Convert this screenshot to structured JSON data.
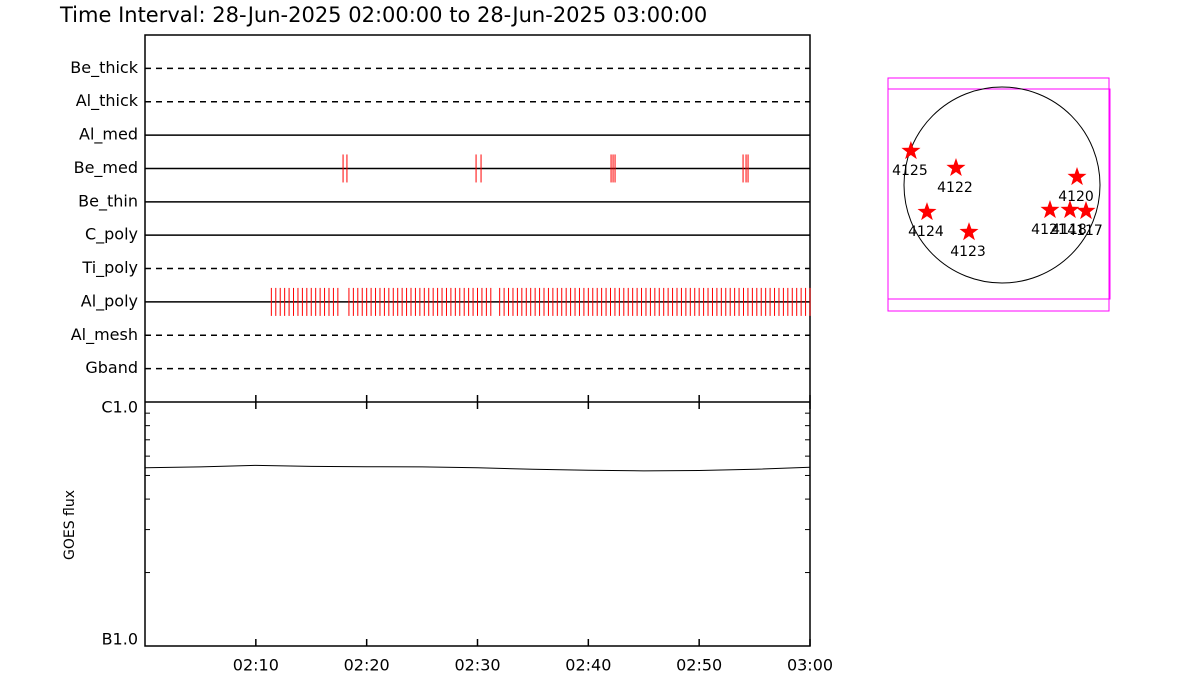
{
  "chart_data": [
    {
      "type": "timeline",
      "title": "Time Interval: 28-Jun-2025 02:00:00 to 28-Jun-2025 03:00:00",
      "xlim": [
        0,
        60
      ],
      "mark_color": "#ff0000",
      "series": [
        {
          "name": "Be_thick",
          "style": "dashed",
          "values": []
        },
        {
          "name": "Al_thick",
          "style": "dashed",
          "values": []
        },
        {
          "name": "Al_med",
          "style": "solid",
          "values": []
        },
        {
          "name": "Be_med",
          "style": "solid",
          "values": [
            17.87,
            18.22,
            29.87,
            30.32,
            42.05,
            42.23,
            42.41,
            53.96,
            54.23,
            54.41
          ]
        },
        {
          "name": "Be_thin",
          "style": "solid",
          "values": []
        },
        {
          "name": "C_poly",
          "style": "solid",
          "values": []
        },
        {
          "name": "Ti_poly",
          "style": "dashed",
          "values": []
        },
        {
          "name": "Al_poly",
          "style": "solid",
          "values": [
            11.4,
            11.8,
            12.2,
            12.6,
            13.0,
            13.4,
            13.8,
            14.2,
            14.6,
            15.0,
            15.4,
            15.8,
            16.2,
            16.6,
            17.0,
            17.4,
            18.4,
            18.8,
            19.2,
            19.6,
            20.0,
            20.4,
            20.8,
            21.2,
            21.6,
            22.0,
            22.4,
            22.8,
            23.2,
            23.6,
            24.0,
            24.4,
            24.8,
            25.2,
            25.6,
            26.0,
            26.4,
            26.8,
            27.2,
            27.6,
            28.0,
            28.4,
            28.8,
            29.2,
            29.6,
            30.0,
            30.4,
            30.8,
            31.2,
            32.0,
            32.4,
            32.8,
            33.2,
            33.6,
            34.0,
            34.4,
            34.8,
            35.2,
            35.6,
            36.0,
            36.4,
            36.8,
            37.2,
            37.6,
            38.0,
            38.4,
            38.8,
            39.2,
            39.6,
            40.0,
            40.4,
            40.8,
            41.2,
            41.6,
            42.0,
            42.4,
            42.8,
            43.2,
            43.6,
            44.0,
            44.4,
            44.8,
            45.2,
            45.6,
            46.0,
            46.4,
            46.8,
            47.2,
            47.6,
            48.0,
            48.4,
            48.8,
            49.2,
            49.6,
            50.0,
            50.4,
            50.8,
            51.2,
            51.6,
            52.0,
            52.4,
            52.8,
            53.2,
            53.6,
            54.0,
            54.4,
            54.8,
            55.2,
            55.6,
            56.0,
            56.4,
            56.8,
            57.2,
            57.6,
            58.0,
            58.4,
            58.8,
            59.2,
            59.6,
            60.0
          ]
        },
        {
          "name": "Al_mesh",
          "style": "dashed",
          "values": []
        },
        {
          "name": "Gband",
          "style": "dashed",
          "values": []
        }
      ]
    },
    {
      "type": "line",
      "ylabel": "GOES flux",
      "log": true,
      "color": "#000000",
      "x": [
        0,
        5,
        10,
        15,
        20,
        25,
        30,
        35,
        40,
        45,
        50,
        55,
        60
      ],
      "values": [
        5.38e-07,
        5.42e-07,
        5.5e-07,
        5.45e-07,
        5.43e-07,
        5.42e-07,
        5.38e-07,
        5.3e-07,
        5.25e-07,
        5.22e-07,
        5.24e-07,
        5.3e-07,
        5.4e-07
      ],
      "xlim": [
        0,
        60
      ],
      "xticks": [
        {
          "value": 10,
          "label": "02:10"
        },
        {
          "value": 20,
          "label": "02:20"
        },
        {
          "value": 30,
          "label": "02:30"
        },
        {
          "value": 40,
          "label": "02:40"
        },
        {
          "value": 50,
          "label": "02:50"
        },
        {
          "value": 60,
          "label": "03:00"
        }
      ],
      "ylim": [
        1e-07,
        1e-06
      ],
      "yticks": [
        {
          "value": 1e-07,
          "label": "B1.0"
        },
        {
          "value": 1e-06,
          "label": "C1.0"
        }
      ],
      "yminorticks": [
        2e-07,
        3e-07,
        4e-07,
        5e-07,
        6e-07,
        7e-07,
        8e-07,
        9e-07
      ]
    },
    {
      "type": "map",
      "color": "#ff0000",
      "regions": [
        {
          "label": "4125",
          "x": -892,
          "y": 333
        },
        {
          "label": "4122",
          "x": -451,
          "y": 167
        },
        {
          "label": "4120",
          "x": 735,
          "y": 78
        },
        {
          "label": "4124",
          "x": -735,
          "y": -265
        },
        {
          "label": "4123",
          "x": -323,
          "y": -461
        },
        {
          "label": "4121",
          "x": 470,
          "y": -245
        },
        {
          "label": "4118",
          "x": 666,
          "y": -245
        },
        {
          "label": "4117",
          "x": 823,
          "y": -255
        }
      ]
    }
  ]
}
